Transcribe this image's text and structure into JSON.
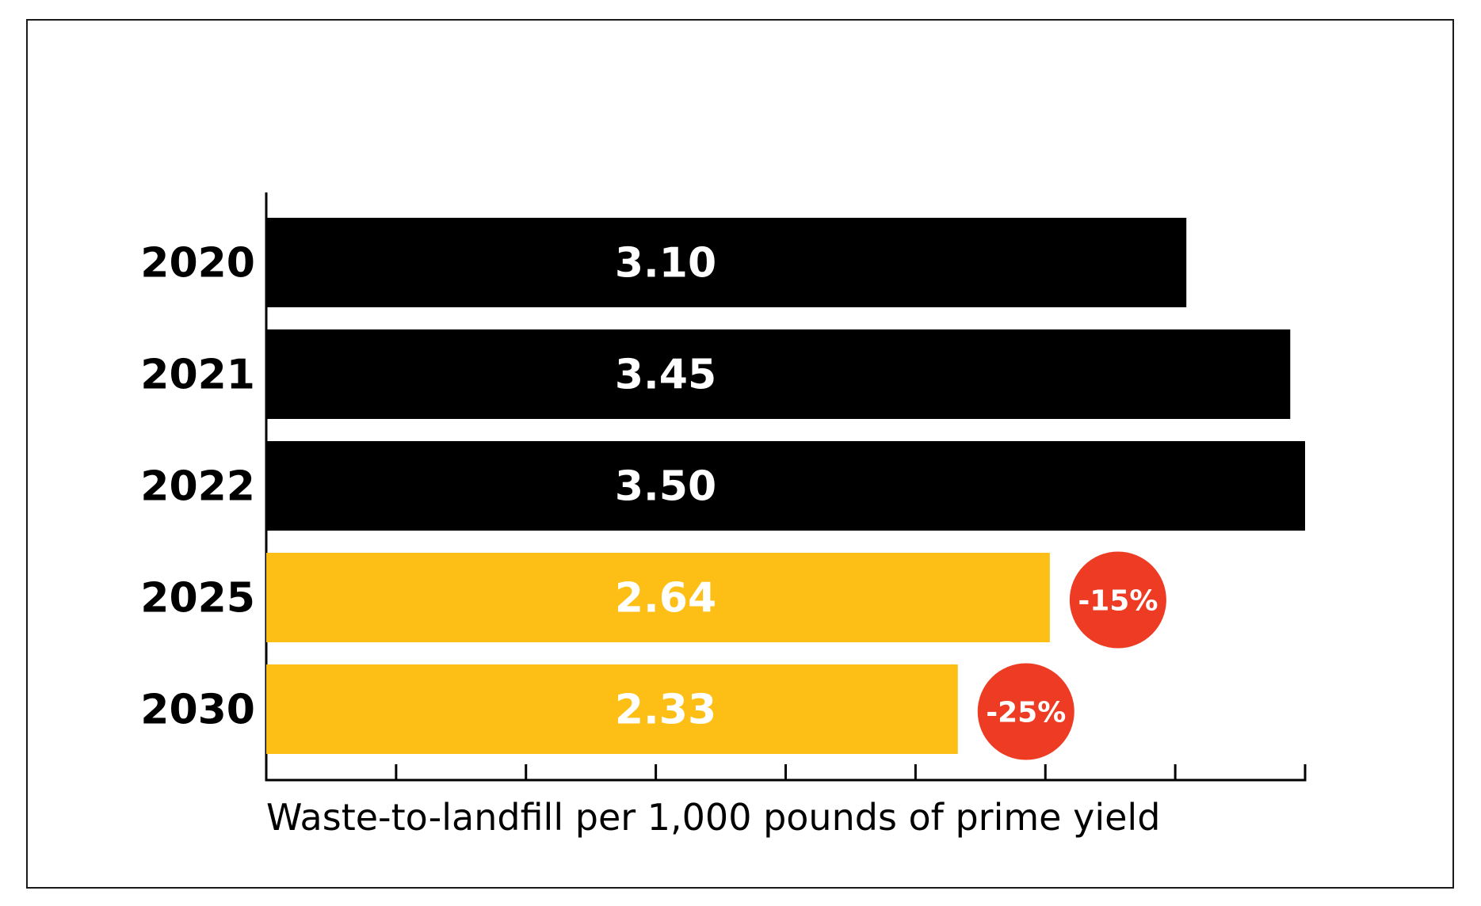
{
  "chart_data": {
    "type": "bar",
    "orientation": "horizontal",
    "categories": [
      "2020",
      "2021",
      "2022",
      "2025",
      "2030"
    ],
    "values": [
      3.1,
      3.45,
      3.5,
      2.64,
      2.33
    ],
    "value_labels": [
      "3.10",
      "3.45",
      "3.50",
      "2.64",
      "2.33"
    ],
    "badges": [
      "",
      "",
      "",
      "-15%",
      "-25%"
    ],
    "bar_colors": [
      "#000000",
      "#000000",
      "#000000",
      "#FDBE16",
      "#FDBE16"
    ],
    "badge_color": "#EE3B24",
    "xlabel": "Waste-to-landfill per 1,000 pounds of prime yield",
    "xlim": [
      0,
      3.5
    ],
    "x_ticks_count": 8,
    "grid": false
  }
}
